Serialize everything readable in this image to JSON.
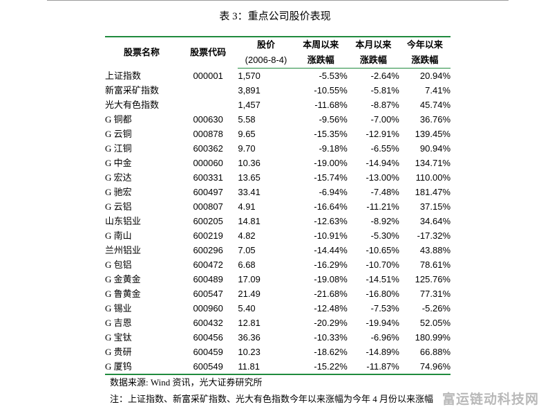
{
  "caption": "表 3：重点公司股价表现",
  "table": {
    "headers": {
      "name": "股票名称",
      "code": "股票代码",
      "price_line1": "股价",
      "price_line2": "(2006-8-4)",
      "week_line1": "本周以来",
      "week_line2": "涨跌幅",
      "month_line1": "本月以来",
      "month_line2": "涨跌幅",
      "year_line1": "今年以来",
      "year_line2": "涨跌幅"
    },
    "rows": [
      {
        "name": "上证指数",
        "code": "000001",
        "price": "1,570",
        "week": "-5.53%",
        "month": "-2.64%",
        "year": "20.94%"
      },
      {
        "name": "新富采矿指数",
        "code": "",
        "price": "3,891",
        "week": "-10.55%",
        "month": "-5.81%",
        "year": "7.41%"
      },
      {
        "name": "光大有色指数",
        "code": "",
        "price": "1,457",
        "week": "-11.68%",
        "month": "-8.87%",
        "year": "45.74%"
      },
      {
        "name": "G 铜都",
        "code": "000630",
        "price": "5.58",
        "week": "-9.56%",
        "month": "-7.00%",
        "year": "36.76%"
      },
      {
        "name": "G 云铜",
        "code": "000878",
        "price": "9.65",
        "week": "-15.35%",
        "month": "-12.91%",
        "year": "139.45%"
      },
      {
        "name": "G 江铜",
        "code": "600362",
        "price": "9.70",
        "week": "-9.18%",
        "month": "-6.55%",
        "year": "90.94%"
      },
      {
        "name": "G 中金",
        "code": "000060",
        "price": "10.36",
        "week": "-19.00%",
        "month": "-14.94%",
        "year": "134.71%"
      },
      {
        "name": "G 宏达",
        "code": "600331",
        "price": "13.65",
        "week": "-15.74%",
        "month": "-13.00%",
        "year": "110.00%"
      },
      {
        "name": "G 驰宏",
        "code": "600497",
        "price": "33.41",
        "week": "-6.94%",
        "month": "-7.48%",
        "year": "181.47%"
      },
      {
        "name": "G 云铝",
        "code": "000807",
        "price": "4.91",
        "week": "-16.64%",
        "month": "-11.21%",
        "year": "37.15%"
      },
      {
        "name": "山东铝业",
        "code": "600205",
        "price": "14.81",
        "week": "-12.63%",
        "month": "-8.92%",
        "year": "34.64%"
      },
      {
        "name": "G 南山",
        "code": "600219",
        "price": "4.82",
        "week": "-10.91%",
        "month": "-5.30%",
        "year": "-17.32%"
      },
      {
        "name": "兰州铝业",
        "code": "600296",
        "price": "7.05",
        "week": "-14.44%",
        "month": "-10.65%",
        "year": "43.88%"
      },
      {
        "name": "G 包铝",
        "code": "600472",
        "price": "6.68",
        "week": "-16.29%",
        "month": "-10.70%",
        "year": "78.61%"
      },
      {
        "name": "G 金黄金",
        "code": "600489",
        "price": "17.09",
        "week": "-19.08%",
        "month": "-14.51%",
        "year": "125.76%"
      },
      {
        "name": "G 鲁黄金",
        "code": "600547",
        "price": "21.49",
        "week": "-21.68%",
        "month": "-16.80%",
        "year": "77.31%"
      },
      {
        "name": "G 锡业",
        "code": "000960",
        "price": "5.40",
        "week": "-12.48%",
        "month": "-7.53%",
        "year": "-5.26%"
      },
      {
        "name": "G 吉恩",
        "code": "600432",
        "price": "12.81",
        "week": "-20.29%",
        "month": "-19.94%",
        "year": "52.05%"
      },
      {
        "name": "G 宝钛",
        "code": "600456",
        "price": "36.36",
        "week": "-10.33%",
        "month": "-6.96%",
        "year": "180.99%"
      },
      {
        "name": "G 贵研",
        "code": "600459",
        "price": "10.23",
        "week": "-18.62%",
        "month": "-14.89%",
        "year": "66.88%"
      },
      {
        "name": "G 厦钨",
        "code": "600549",
        "price": "11.81",
        "week": "-15.22%",
        "month": "-11.87%",
        "year": "74.96%"
      }
    ]
  },
  "source": "数据来源: Wind 资讯，光大证券研究所",
  "note": "注：上证指数、新富采矿指数、光大有色指数今年以来涨幅为今年 4 月份以来涨幅",
  "watermark": "富运链动科技网"
}
